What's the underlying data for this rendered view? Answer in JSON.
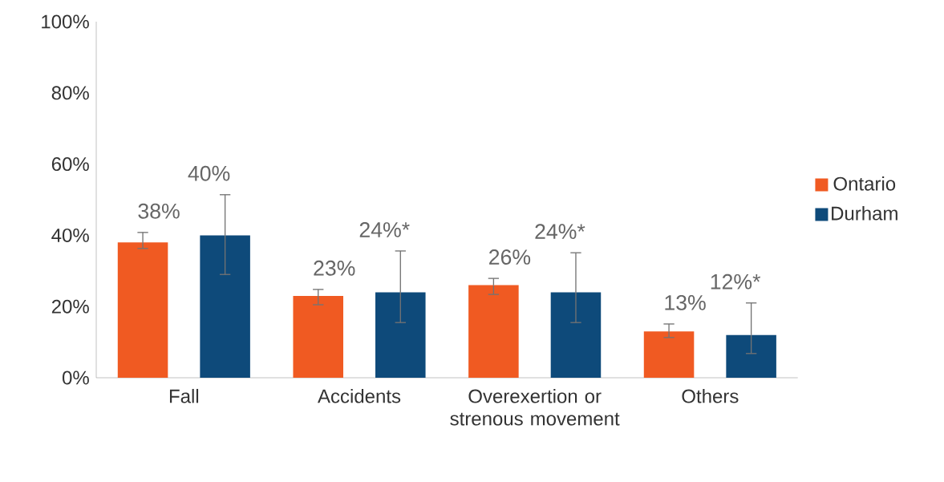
{
  "chart_data": {
    "type": "bar",
    "categories": [
      "Fall",
      "Accidents",
      "Overexertion or strenous movement",
      "Others"
    ],
    "series": [
      {
        "name": "Ontario",
        "color": "#f05a22",
        "values": [
          38,
          23,
          26,
          13
        ],
        "errors": [
          [
            36.3,
            40.8
          ],
          [
            20.5,
            24.8
          ],
          [
            23.4,
            27.9
          ],
          [
            11.3,
            15.1
          ]
        ],
        "value_labels": [
          "38%",
          "23%",
          "26%",
          "13%"
        ]
      },
      {
        "name": "Durham",
        "color": "#0e4a7a",
        "values": [
          40,
          24,
          24,
          12
        ],
        "errors": [
          [
            29,
            51.4
          ],
          [
            15.5,
            35.6
          ],
          [
            15.5,
            35.1
          ],
          [
            6.8,
            21
          ]
        ],
        "value_labels": [
          "40%",
          "24%*",
          "24%*",
          "12%*"
        ]
      }
    ],
    "ylim": [
      0,
      100
    ],
    "yticks": [
      {
        "value": 0,
        "label": "0%"
      },
      {
        "value": 20,
        "label": "20%"
      },
      {
        "value": 40,
        "label": "40%"
      },
      {
        "value": 60,
        "label": "60%"
      },
      {
        "value": 80,
        "label": "80%"
      },
      {
        "value": 100,
        "label": "100%"
      }
    ],
    "grid": false,
    "legend": "right"
  }
}
